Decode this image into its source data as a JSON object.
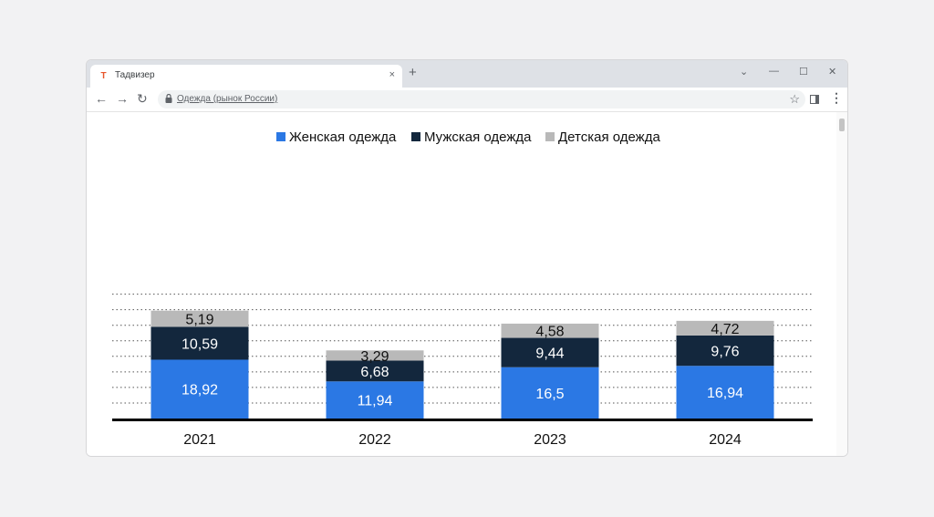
{
  "browser": {
    "tab_title": "Тадвизер",
    "favicon_letter": "T",
    "tab_close": "×",
    "new_tab": "+",
    "controls": {
      "minimize": "—",
      "maximize": "☐",
      "close": "✕",
      "dropdown": "⌄"
    },
    "nav": {
      "back": "←",
      "forward": "→",
      "reload": "↻"
    },
    "url": "Одежда (рынок России)",
    "bookmark": "☆",
    "menu": "⋮"
  },
  "colors": {
    "women": "#2b78e4",
    "men": "#13273d",
    "kids": "#b9b9b9",
    "axis": "#000000",
    "grid": "#555555"
  },
  "chart_data": {
    "type": "bar",
    "stacked": true,
    "categories": [
      "2021",
      "2022",
      "2023",
      "2024"
    ],
    "series": [
      {
        "name": "Женская одежда",
        "values": [
          18.92,
          11.94,
          16.5,
          16.94
        ],
        "labels": [
          "18,92",
          "11,94",
          "16,5",
          "16,94"
        ]
      },
      {
        "name": "Мужская одежда",
        "values": [
          10.59,
          6.68,
          9.44,
          9.76
        ],
        "labels": [
          "10,59",
          "6,68",
          "9,44",
          "9,76"
        ]
      },
      {
        "name": "Детская одежда",
        "values": [
          5.19,
          3.29,
          4.58,
          4.72
        ],
        "labels": [
          "5,19",
          "3,29",
          "4,58",
          "4,72"
        ]
      }
    ],
    "ylim": [
      0,
      40
    ],
    "grid": true,
    "legend_position": "top",
    "title": "",
    "xlabel": "",
    "ylabel": ""
  }
}
